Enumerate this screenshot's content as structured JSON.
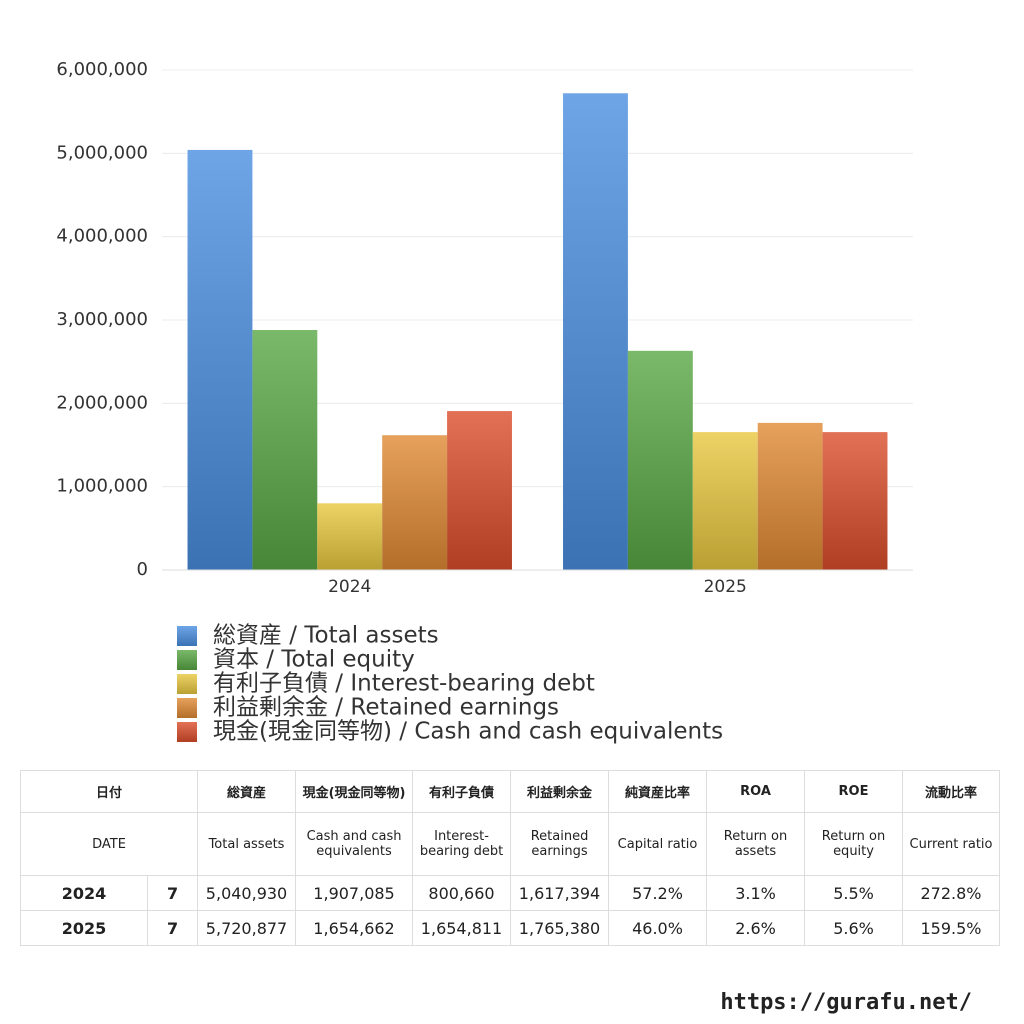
{
  "chart_data": {
    "type": "bar",
    "categories": [
      "2024",
      "2025"
    ],
    "series": [
      {
        "name": "総資産 / Total assets",
        "color": "#4a8fe0",
        "values": [
          5040930,
          5720877
        ]
      },
      {
        "name": "資本 / Total equity",
        "color": "#5aa845",
        "values": [
          2880000,
          2630000
        ]
      },
      {
        "name": "有利子負債 / Interest-bearing debt",
        "color": "#e8c840",
        "values": [
          800660,
          1654811
        ]
      },
      {
        "name": "利益剰余金 / Retained earnings",
        "color": "#e08a35",
        "values": [
          1617394,
          1765380
        ]
      },
      {
        "name": "現金(現金同等物) / Cash and cash equivalents",
        "color": "#db4d2a",
        "values": [
          1907085,
          1654662
        ]
      }
    ],
    "ylim": [
      0,
      6000000
    ],
    "yticks": [
      0,
      {
        "value": 1000000,
        "label": "1,000,000"
      },
      {
        "value": 2000000,
        "label": "2,000,000"
      },
      {
        "value": 3000000,
        "label": "3,000,000"
      },
      {
        "value": 4000000,
        "label": "4,000,000"
      },
      {
        "value": 5000000,
        "label": "5,000,000"
      },
      {
        "value": 6000000,
        "label": "6,000,000"
      }
    ],
    "grid": true,
    "legend": "bottom"
  },
  "table": {
    "date_header": {
      "jp": "日付",
      "en": "DATE"
    },
    "columns": [
      {
        "jp": "総資産",
        "en": "Total assets"
      },
      {
        "jp": "現金(現金同等物)",
        "en": "Cash and cash equivalents"
      },
      {
        "jp": "有利子負債",
        "en": "Interest-bearing debt"
      },
      {
        "jp": "利益剰余金",
        "en": "Retained earnings"
      },
      {
        "jp": "純資産比率",
        "en": "Capital ratio"
      },
      {
        "jp": "ROA",
        "en": "Return on assets"
      },
      {
        "jp": "ROE",
        "en": "Return on equity"
      },
      {
        "jp": "流動比率",
        "en": "Current ratio"
      }
    ],
    "rows": [
      {
        "year": "2024",
        "month": "7",
        "cells": [
          "5,040,930",
          "1,907,085",
          "800,660",
          "1,617,394",
          "57.2%",
          "3.1%",
          "5.5%",
          "272.8%"
        ]
      },
      {
        "year": "2025",
        "month": "7",
        "cells": [
          "5,720,877",
          "1,654,662",
          "1,654,811",
          "1,765,380",
          "46.0%",
          "2.6%",
          "5.6%",
          "159.5%"
        ]
      }
    ]
  },
  "footer": "https://gurafu.net/"
}
